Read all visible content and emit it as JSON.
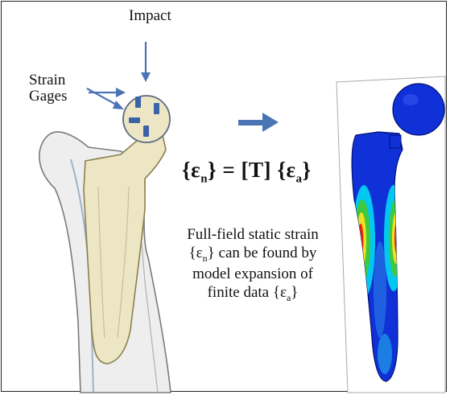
{
  "labels": {
    "impact": "Impact",
    "strain_line1": "Strain",
    "strain_line2": "Gages"
  },
  "equation": {
    "left_open": "{ε",
    "left_sub": "n",
    "left_close": "}",
    "middle": " = [T] ",
    "right_open": "{ε",
    "right_sub": "a",
    "right_close": "}"
  },
  "caption": {
    "line1": "Full-field static strain",
    "line2": "{ε",
    "line2_sub": "n",
    "line2_rest": "} can be found by",
    "line3": "model expansion of",
    "line4": "finite data {ε",
    "line4_sub": "a",
    "line4_rest": "}"
  },
  "colors": {
    "arrow": "#4a74b4",
    "implant_fill": "#ede6c4",
    "implant_stroke": "#8a8050",
    "gage": "#3b64a8",
    "fea_base": "#1030d8",
    "fea_cyan": "#00c8f0",
    "fea_green": "#40c840",
    "fea_yellow": "#f0e020",
    "fea_red": "#e82010"
  }
}
